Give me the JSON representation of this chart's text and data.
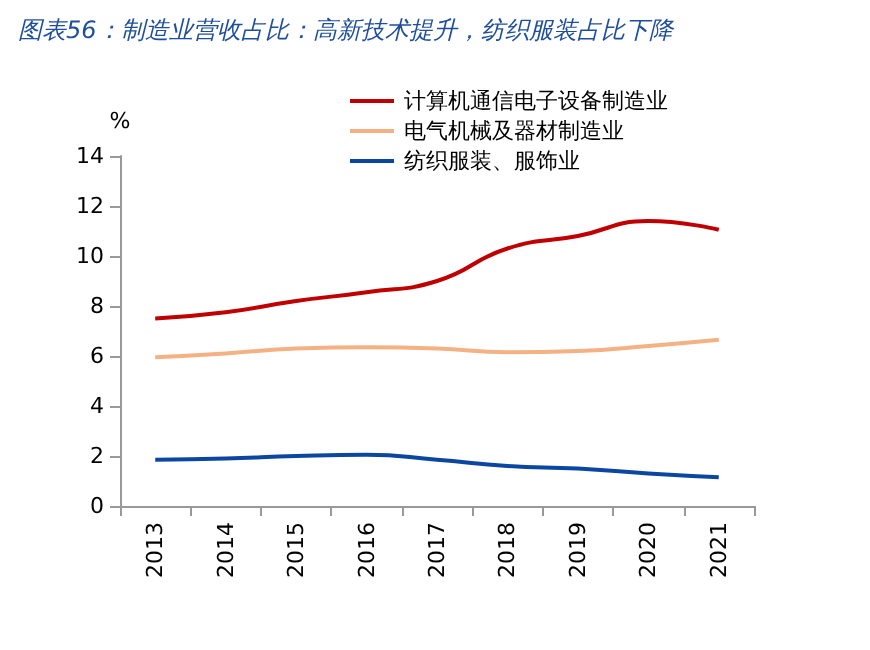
{
  "chart_data": {
    "type": "line",
    "title": "图表56：制造业营收占比：高新技术提升，纺织服装占比下降",
    "ylabel": "%",
    "categories": [
      "2013",
      "2014",
      "2015",
      "2016",
      "2017",
      "2018",
      "2019",
      "2020",
      "2021"
    ],
    "series": [
      {
        "name": "计算机通信电子设备制造业",
        "color": "#c00000",
        "values": [
          7.5,
          7.75,
          8.2,
          8.55,
          9.0,
          10.3,
          10.8,
          11.4,
          11.05
        ]
      },
      {
        "name": "电气机械及器材制造业",
        "color": "#f4b183",
        "values": [
          5.95,
          6.1,
          6.3,
          6.35,
          6.3,
          6.15,
          6.2,
          6.4,
          6.65
        ]
      },
      {
        "name": "纺织服装、服饰业",
        "color": "#0b47a1",
        "values": [
          1.85,
          1.9,
          2.0,
          2.05,
          1.85,
          1.6,
          1.5,
          1.3,
          1.15
        ]
      }
    ],
    "ylim": [
      0,
      14
    ],
    "yticks": [
      0,
      2,
      4,
      6,
      8,
      10,
      12,
      14
    ],
    "grid": false,
    "legend": "top",
    "marker": "none",
    "line_style": "solid"
  }
}
